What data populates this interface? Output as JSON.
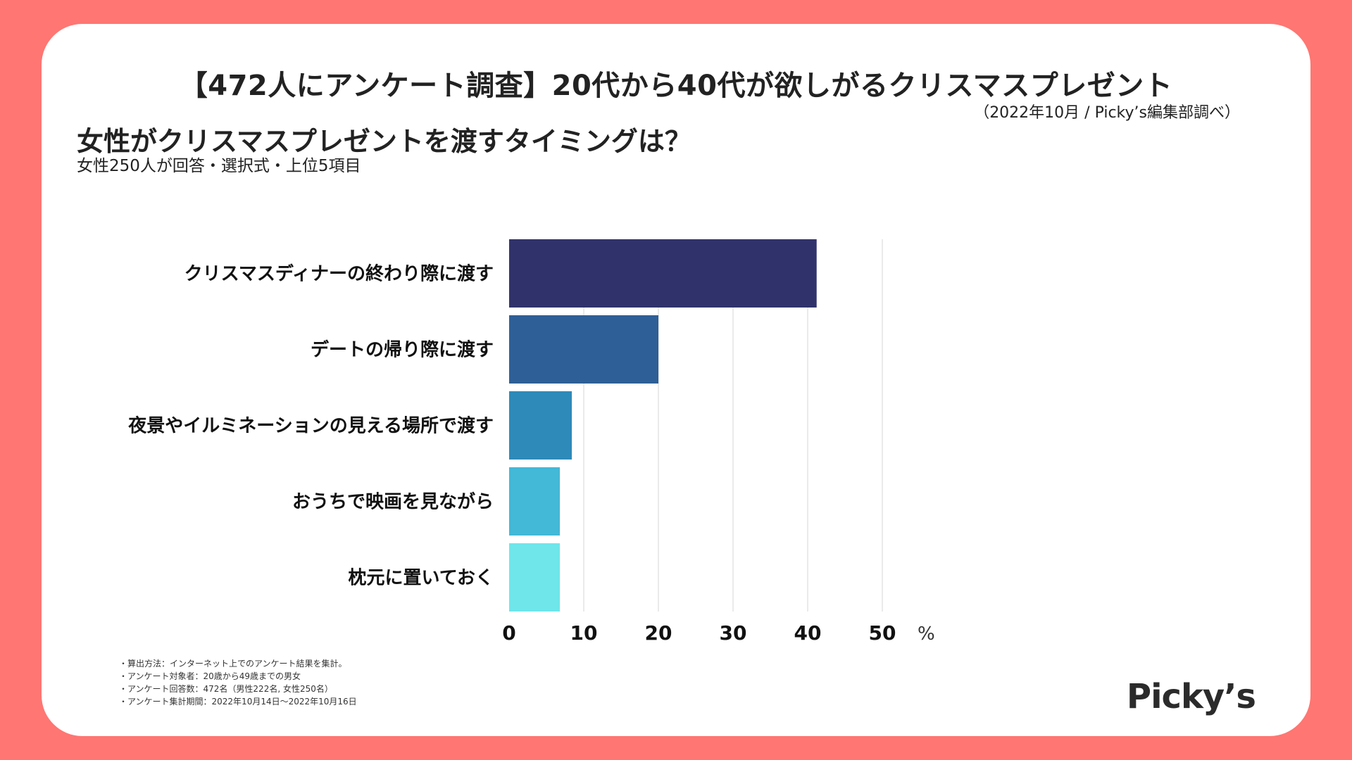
{
  "header": {
    "title": "【472人にアンケート調査】20代から40代が欲しがるクリスマスプレゼント",
    "source": "（2022年10月 / Picky’s編集部調べ）"
  },
  "chart_data": {
    "type": "bar",
    "orientation": "horizontal",
    "title": "女性がクリスマスプレゼントを渡すタイミングは？",
    "subtitle": "女性250人が回答・選択式・上位5項目",
    "categories": [
      "クリスマスディナーの終わり際に渡す",
      "デートの帰り際に渡す",
      "夜景やイルミネーションの見える場所で渡す",
      "おうちで映画を見ながら",
      "枕元に置いておく"
    ],
    "values": [
      41.2,
      20.0,
      8.4,
      6.8,
      6.8
    ],
    "colors": [
      "#30336b",
      "#2e5f96",
      "#2e8ab9",
      "#43b8d7",
      "#6ee6ea"
    ],
    "xlim": [
      0,
      50
    ],
    "xticks": [
      "0",
      "10",
      "20",
      "30",
      "40",
      "50"
    ],
    "xunit": "%",
    "grid": true,
    "legend": "none"
  },
  "notes": [
    "・算出方法：インターネット上でのアンケート結果を集計。",
    "・アンケート対象者：20歳から49歳までの男女",
    "・アンケート回答数：472名（男性222名, 女性250名）",
    "・アンケート集計期間：2022年10月14日〜2022年10月16日"
  ],
  "brand": {
    "logo_text": "Picky’s",
    "background_color": "#ff7672"
  }
}
